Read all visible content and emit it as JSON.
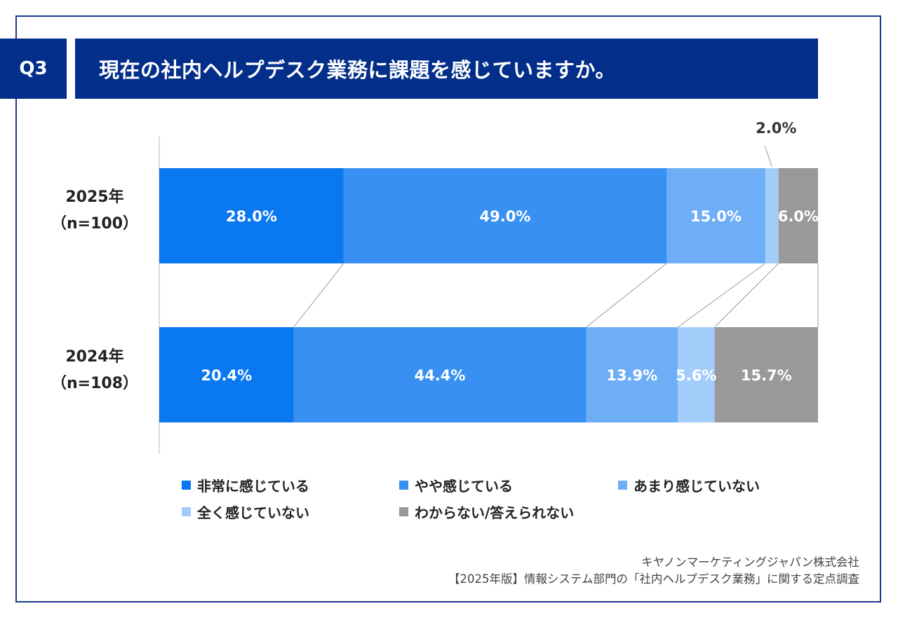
{
  "header": {
    "q_label": "Q3",
    "title": "現在の社内ヘルプデスク業務に課題を感じていますか。"
  },
  "chart_data": {
    "type": "bar",
    "orientation": "horizontal",
    "stacked": true,
    "percent_stacked": true,
    "title": "現在の社内ヘルプデスク業務に課題を感じていますか。",
    "categories": [
      {
        "year": "2025年",
        "n": "（n=100）"
      },
      {
        "year": "2024年",
        "n": "（n=108）"
      }
    ],
    "series": [
      {
        "name": "非常に感じている",
        "color": "#0a78f0",
        "values": [
          28.0,
          20.4
        ]
      },
      {
        "name": "やや感じている",
        "color": "#3891f2",
        "values": [
          49.0,
          44.4
        ]
      },
      {
        "name": "あまり感じていない",
        "color": "#6eaef6",
        "values": [
          15.0,
          13.9
        ]
      },
      {
        "name": "全く感じていない",
        "color": "#a2cdfb",
        "values": [
          2.0,
          5.6
        ]
      },
      {
        "name": "わからない/答えられない",
        "color": "#999999",
        "values": [
          6.0,
          15.7
        ]
      }
    ],
    "value_labels": [
      [
        "28.0%",
        "49.0%",
        "15.0%",
        "2.0%",
        "6.0%"
      ],
      [
        "20.4%",
        "44.4%",
        "13.9%",
        "5.6%",
        "15.7%"
      ]
    ],
    "connector_lines": true,
    "legend_position": "bottom"
  },
  "source": {
    "line1": "キヤノンマーケティングジャパン株式会社",
    "line2": "【2025年版】情報システム部門の「社内ヘルプデスク業務」に関する定点調査"
  }
}
